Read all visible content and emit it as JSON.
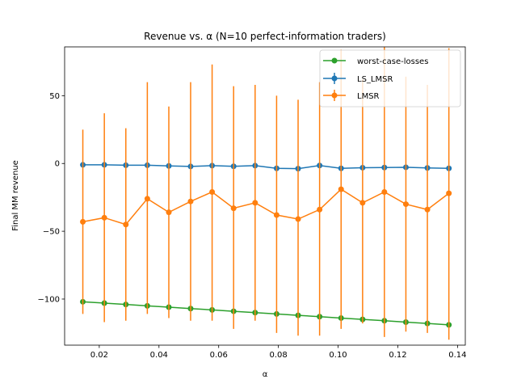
{
  "chart_data": {
    "type": "line",
    "title": "Revenue vs. α (N=10 perfect-information traders)",
    "xlabel": "α",
    "ylabel": "Final MM revenue",
    "xlim": [
      0.0084,
      0.1426
    ],
    "ylim": [
      -134,
      86
    ],
    "xticks": [
      0.02,
      0.04,
      0.06,
      0.08,
      0.1,
      0.12,
      0.14
    ],
    "xtick_labels": [
      "0.02",
      "0.04",
      "0.06",
      "0.08",
      "0.10",
      "0.12",
      "0.14"
    ],
    "yticks": [
      -100,
      -50,
      0,
      50
    ],
    "ytick_labels": [
      "−100",
      "−50",
      "0",
      "50"
    ],
    "grid": false,
    "legend_position": "top-right",
    "x": [
      0.0145,
      0.0217,
      0.0289,
      0.0361,
      0.0433,
      0.0506,
      0.0578,
      0.065,
      0.0722,
      0.0794,
      0.0866,
      0.0938,
      0.101,
      0.1082,
      0.1155,
      0.1227,
      0.1299,
      0.1371
    ],
    "series": [
      {
        "name": "worst-case-losses",
        "color": "#2ca02c",
        "marker": "circle",
        "values": [
          -102,
          -103,
          -104,
          -105,
          -106,
          -107,
          -108,
          -109,
          -110,
          -111,
          -112,
          -113,
          -114,
          -115,
          -116,
          -117,
          -118,
          -119
        ]
      },
      {
        "name": "LS_LMSR",
        "color": "#1f77b4",
        "marker": "circle",
        "values": [
          -1,
          -1,
          -1.3,
          -1.3,
          -1.8,
          -2.2,
          -1.6,
          -2.1,
          -1.6,
          -3.6,
          -3.8,
          -1.5,
          -3.6,
          -3.1,
          -3,
          -2.8,
          -3.3,
          -3.6
        ]
      },
      {
        "name": "LMSR",
        "color": "#ff7f0e",
        "marker": "circle",
        "values": [
          -43,
          -40,
          -45,
          -26,
          -36,
          -28,
          -21,
          -33,
          -29,
          -38,
          -41,
          -34,
          -19,
          -29,
          -21,
          -30,
          -34,
          -22
        ],
        "err_low": [
          -111,
          -117,
          -116,
          -111,
          -114,
          -116,
          -116,
          -122,
          -116,
          -125,
          -127,
          -127,
          -122,
          -118,
          -128,
          -124,
          -125,
          -130
        ],
        "err_high": [
          25,
          37,
          26,
          60,
          42,
          60,
          73,
          57,
          58,
          50,
          47,
          60,
          84,
          62,
          86,
          64,
          58,
          85
        ]
      }
    ]
  }
}
